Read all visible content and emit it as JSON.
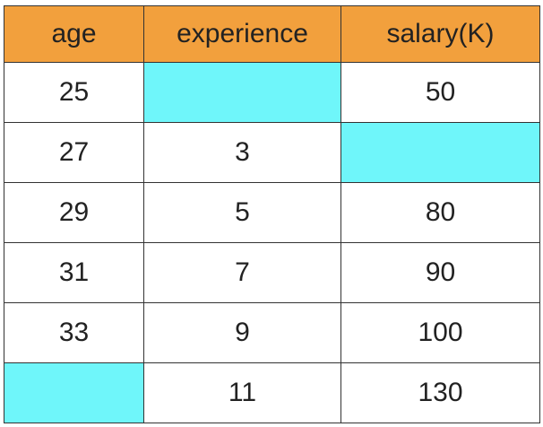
{
  "table": {
    "headers": [
      "age",
      "experience",
      "salary(K)"
    ],
    "rows": [
      [
        "25",
        "",
        "50"
      ],
      [
        "27",
        "3",
        ""
      ],
      [
        "29",
        "5",
        "80"
      ],
      [
        "31",
        "7",
        "90"
      ],
      [
        "33",
        "9",
        "100"
      ],
      [
        "",
        "11",
        "130"
      ]
    ],
    "missing_cells": [
      [
        0,
        1
      ],
      [
        1,
        2
      ],
      [
        5,
        0
      ]
    ]
  },
  "colors": {
    "header_bg": "#f2a03d",
    "missing_bg": "#6ff6fa",
    "cell_bg": "#ffffff",
    "border": "#333333"
  }
}
